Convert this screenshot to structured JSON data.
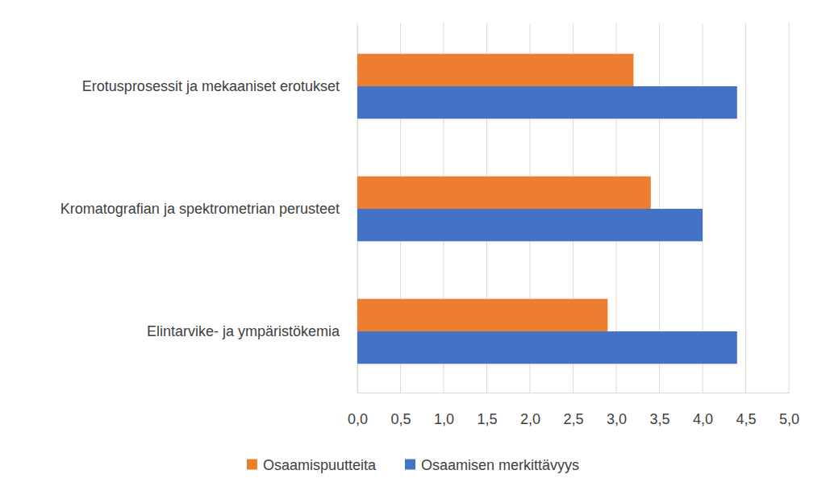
{
  "chart_data": {
    "type": "bar",
    "orientation": "horizontal",
    "categories": [
      "Erotusprosessit ja mekaaniset erotukset",
      "Kromatografian ja spektrometrian perusteet",
      "Elintarvike- ja ympäristökemia"
    ],
    "series": [
      {
        "name": "Osaamispuutteita",
        "color": "#ed7d31",
        "values": [
          3.2,
          3.4,
          2.9
        ]
      },
      {
        "name": "Osaamisen merkittävyys",
        "color": "#4472c4",
        "values": [
          4.4,
          4.0,
          4.4
        ]
      }
    ],
    "xlim": [
      0,
      5
    ],
    "xticks": [
      {
        "value": 0,
        "label": "0,0"
      },
      {
        "value": 0.5,
        "label": "0,5"
      },
      {
        "value": 1,
        "label": "1,0"
      },
      {
        "value": 1.5,
        "label": "1,5"
      },
      {
        "value": 2,
        "label": "2,0"
      },
      {
        "value": 2.5,
        "label": "2,5"
      },
      {
        "value": 3,
        "label": "3,0"
      },
      {
        "value": 3.5,
        "label": "3,5"
      },
      {
        "value": 4,
        "label": "4,0"
      },
      {
        "value": 4.5,
        "label": "4,5"
      },
      {
        "value": 5,
        "label": "5,0"
      }
    ],
    "grid": true,
    "legend": "bottom"
  }
}
